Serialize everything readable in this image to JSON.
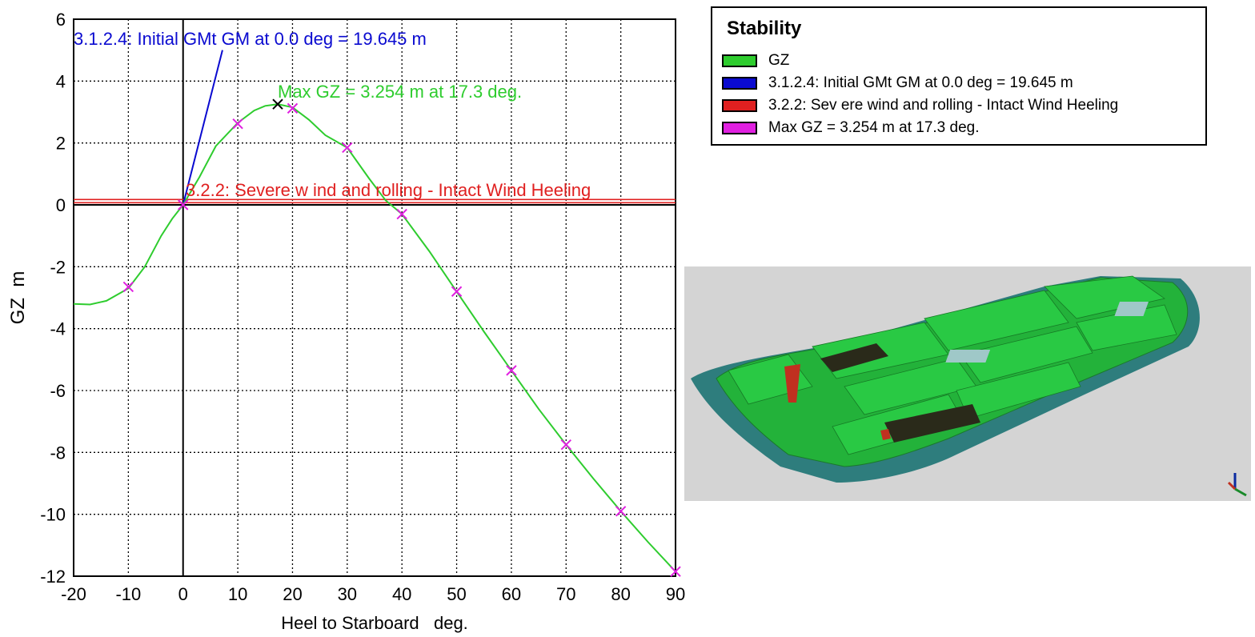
{
  "chart_data": {
    "type": "line",
    "xlabel": "Heel to Starboard   deg.",
    "ylabel": "GZ  m",
    "xlim": [
      -20,
      90
    ],
    "ylim": [
      -12,
      6
    ],
    "xticks": [
      "-20",
      "-10",
      "0",
      "10",
      "20",
      "30",
      "40",
      "50",
      "60",
      "70",
      "80",
      "90"
    ],
    "yticks": [
      "6",
      "4",
      "2",
      "0",
      "-2",
      "-4",
      "-6",
      "-8",
      "-10",
      "-12"
    ],
    "grid": true,
    "gz_curve": {
      "name": "GZ",
      "color": "#2ecc2e",
      "x": [
        -20,
        -17,
        -14,
        -10,
        -7,
        -4,
        -2,
        0,
        3,
        6,
        10,
        13,
        15,
        17.3,
        20,
        23,
        26,
        30,
        34,
        37,
        40,
        45,
        50,
        55,
        60,
        65,
        70,
        75,
        80,
        85,
        90
      ],
      "y": [
        -3.2,
        -3.22,
        -3.1,
        -2.7,
        -2.0,
        -1.0,
        -0.45,
        0.0,
        0.9,
        1.9,
        2.65,
        3.05,
        3.2,
        3.254,
        3.15,
        2.75,
        2.25,
        1.85,
        0.85,
        0.15,
        -0.3,
        -1.5,
        -2.8,
        -4.1,
        -5.35,
        -6.6,
        -7.75,
        -8.85,
        -9.9,
        -10.9,
        -11.85
      ],
      "markers_x": [
        -10,
        0,
        10,
        20,
        30,
        40,
        50,
        60,
        70,
        80,
        90
      ],
      "markers_y": [
        -2.65,
        0.0,
        2.62,
        3.12,
        1.85,
        -0.3,
        -2.8,
        -5.35,
        -7.75,
        -9.9,
        -11.85
      ],
      "marker_color": "#e020e0"
    },
    "gm_line": {
      "color": "#0a0ad0",
      "x": [
        0,
        7.2
      ],
      "y": [
        0,
        5.0
      ],
      "label": "3.1.2.4: Initial GMt GM at 0.0 deg = 19.645 m"
    },
    "wind_heeling": {
      "color": "#e02020",
      "y": 0.12,
      "label": "3.2.2: Severe w ind and rolling - Intact Wind Heeling"
    },
    "max_gz": {
      "x": 17.3,
      "y": 3.254,
      "label": "Max GZ = 3.254 m at 17.3 deg."
    }
  },
  "legend": {
    "title": "Stability",
    "items": [
      {
        "label": "GZ",
        "color": "#2ecc2e"
      },
      {
        "label": "3.1.2.4: Initial GMt GM at 0.0 deg = 19.645 m",
        "color": "#0a0ad0"
      },
      {
        "label": "3.2.2: Sev ere wind and rolling - Intact Wind Heeling",
        "color": "#e02020"
      },
      {
        "label": "Max GZ = 3.254 m at 17.3 deg.",
        "color": "#e020e0"
      }
    ]
  },
  "hull_view": {
    "background": "#d4d4d4",
    "hull_color": "#2e7d7d",
    "deck_color": "#22c43a",
    "tank_dark": "#2a2a1a",
    "tank_red": "#c03020"
  }
}
